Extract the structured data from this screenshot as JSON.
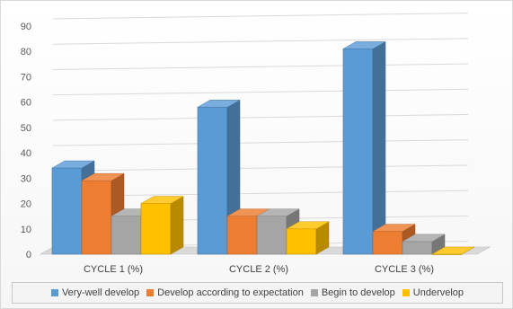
{
  "chart_data": {
    "type": "bar",
    "style": "3d-clustered-column",
    "categories": [
      "CYCLE 1 (%)",
      "CYCLE 2 (%)",
      "CYCLE 3 (%)"
    ],
    "series": [
      {
        "name": "Very-well develop",
        "values": [
          34,
          58,
          81
        ],
        "color": "#5b9bd5"
      },
      {
        "name": "Develop according to expectation",
        "values": [
          29,
          15,
          9
        ],
        "color": "#ed7d31"
      },
      {
        "name": "Begin to develop",
        "values": [
          15,
          15,
          5
        ],
        "color": "#a5a5a5"
      },
      {
        "name": "Undervelop",
        "values": [
          20,
          10,
          0
        ],
        "color": "#ffc000"
      }
    ],
    "ylim": [
      0,
      90
    ],
    "yticks": [
      "0",
      "10",
      "20",
      "30",
      "40",
      "50",
      "60",
      "70",
      "80",
      "90"
    ],
    "grid": true,
    "legend_position": "bottom"
  }
}
